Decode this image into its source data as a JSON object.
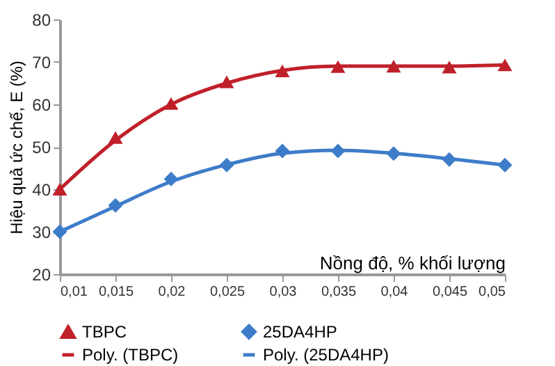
{
  "chart_data": {
    "type": "scatter",
    "xlabel": "Nồng độ, % khối lượng",
    "ylabel": "Hiệu quả ức chế, E (%)",
    "categories": [
      "0,01",
      "0,015",
      "0,02",
      "0,025",
      "0,03",
      "0,035",
      "0,04",
      "0,045",
      "0,05"
    ],
    "series": [
      {
        "name": "TBPC",
        "type": "scatter",
        "marker": "triangle",
        "color": "#c0202a",
        "values": [
          40,
          52.2,
          60.2,
          65.3,
          67.9,
          68.9,
          69,
          68.8,
          69.3
        ]
      },
      {
        "name": "25DA4HP",
        "type": "scatter",
        "marker": "diamond",
        "color": "#3d7cc9",
        "values": [
          30,
          36.2,
          42.4,
          45.7,
          49,
          49,
          48.4,
          47,
          45.7
        ]
      },
      {
        "name": "Poly. (TBPC)",
        "type": "line",
        "line_style": "solid",
        "color": "#c0202a",
        "values": [
          40,
          51.5,
          60,
          65,
          68,
          69,
          69,
          69,
          69.3
        ]
      },
      {
        "name": "Poly. (25DA4HP)",
        "type": "line",
        "line_style": "solid",
        "color": "#3d7cc9",
        "values": [
          30,
          36,
          41.8,
          45.8,
          48.5,
          49.2,
          48.5,
          47.2,
          45.7
        ]
      }
    ],
    "ylim": [
      20,
      80
    ],
    "yticks": [
      20,
      30,
      40,
      50,
      60,
      70,
      80
    ],
    "grid": false,
    "legend": "bottom"
  }
}
